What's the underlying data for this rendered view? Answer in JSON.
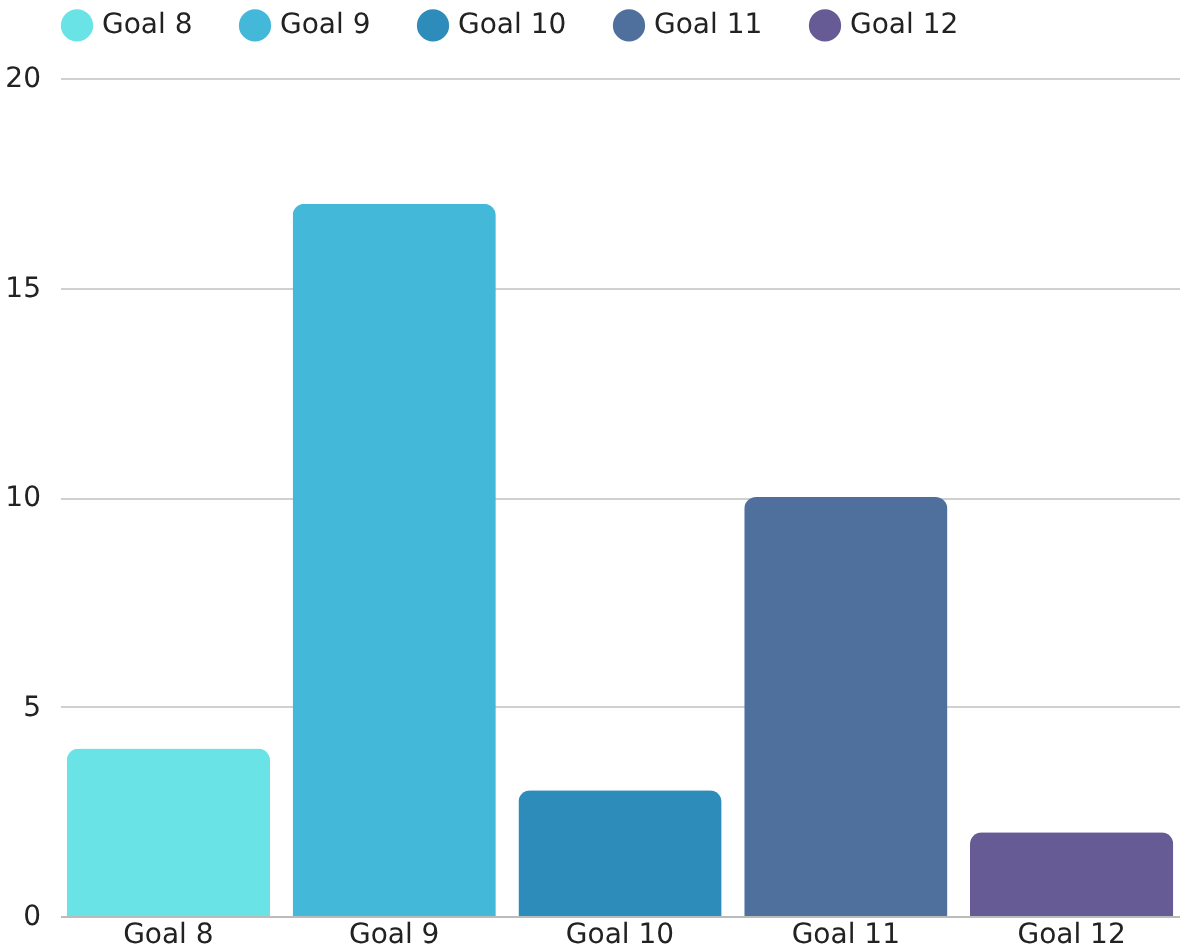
{
  "chart_data": {
    "type": "bar",
    "categories": [
      "Goal 8",
      "Goal 9",
      "Goal 10",
      "Goal 11",
      "Goal 12"
    ],
    "series": [
      {
        "name": "Goal 8",
        "color": "#6ae3e6",
        "values": [
          4,
          null,
          null,
          null,
          null
        ]
      },
      {
        "name": "Goal 9",
        "color": "#44b8d8",
        "values": [
          null,
          17,
          null,
          null,
          null
        ]
      },
      {
        "name": "Goal 10",
        "color": "#2e8cba",
        "values": [
          null,
          null,
          3,
          null,
          null
        ]
      },
      {
        "name": "Goal 11",
        "color": "#4f6f9c",
        "values": [
          null,
          null,
          null,
          10,
          null
        ]
      },
      {
        "name": "Goal 12",
        "color": "#665b94",
        "values": [
          null,
          null,
          null,
          null,
          2
        ]
      }
    ],
    "ylim": [
      0,
      20
    ],
    "yticks": [
      0,
      5,
      10,
      15,
      20
    ],
    "grid": "y",
    "legend": "top"
  }
}
